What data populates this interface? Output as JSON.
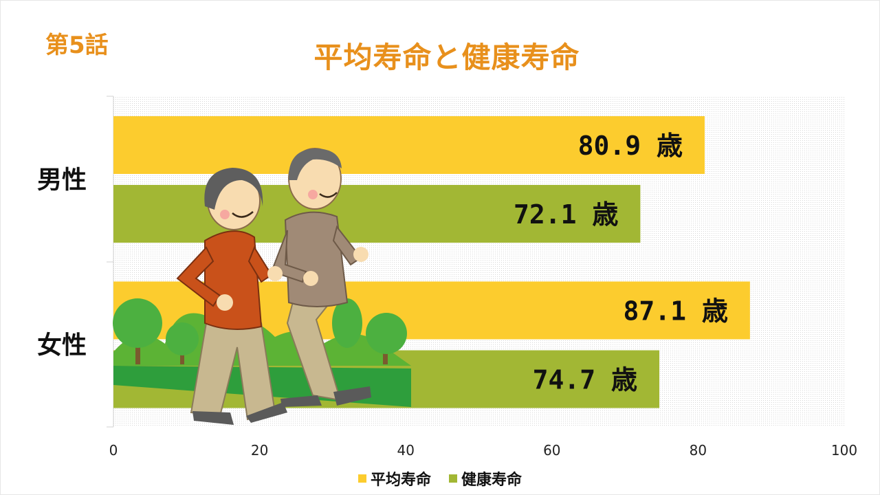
{
  "episode": "第5話",
  "title": "平均寿命と健康寿命",
  "colors": {
    "title": "#e8901c",
    "avg_life": "#fccc2e",
    "healthy_life": "#a2b734"
  },
  "chart_data": {
    "type": "bar",
    "orientation": "horizontal",
    "categories": [
      "男性",
      "女性"
    ],
    "series": [
      {
        "name": "平均寿命",
        "values": [
          80.9,
          87.1
        ],
        "labels": [
          "80.9 歳",
          "87.1 歳"
        ],
        "color": "#fccc2e"
      },
      {
        "name": "健康寿命",
        "values": [
          72.1,
          74.7
        ],
        "labels": [
          "72.1 歳",
          "74.7 歳"
        ],
        "color": "#a2b734"
      }
    ],
    "xlim": [
      0,
      100
    ],
    "xticks": [
      "0",
      "20",
      "40",
      "60",
      "80",
      "100"
    ],
    "grid": false,
    "legend_position": "bottom"
  }
}
